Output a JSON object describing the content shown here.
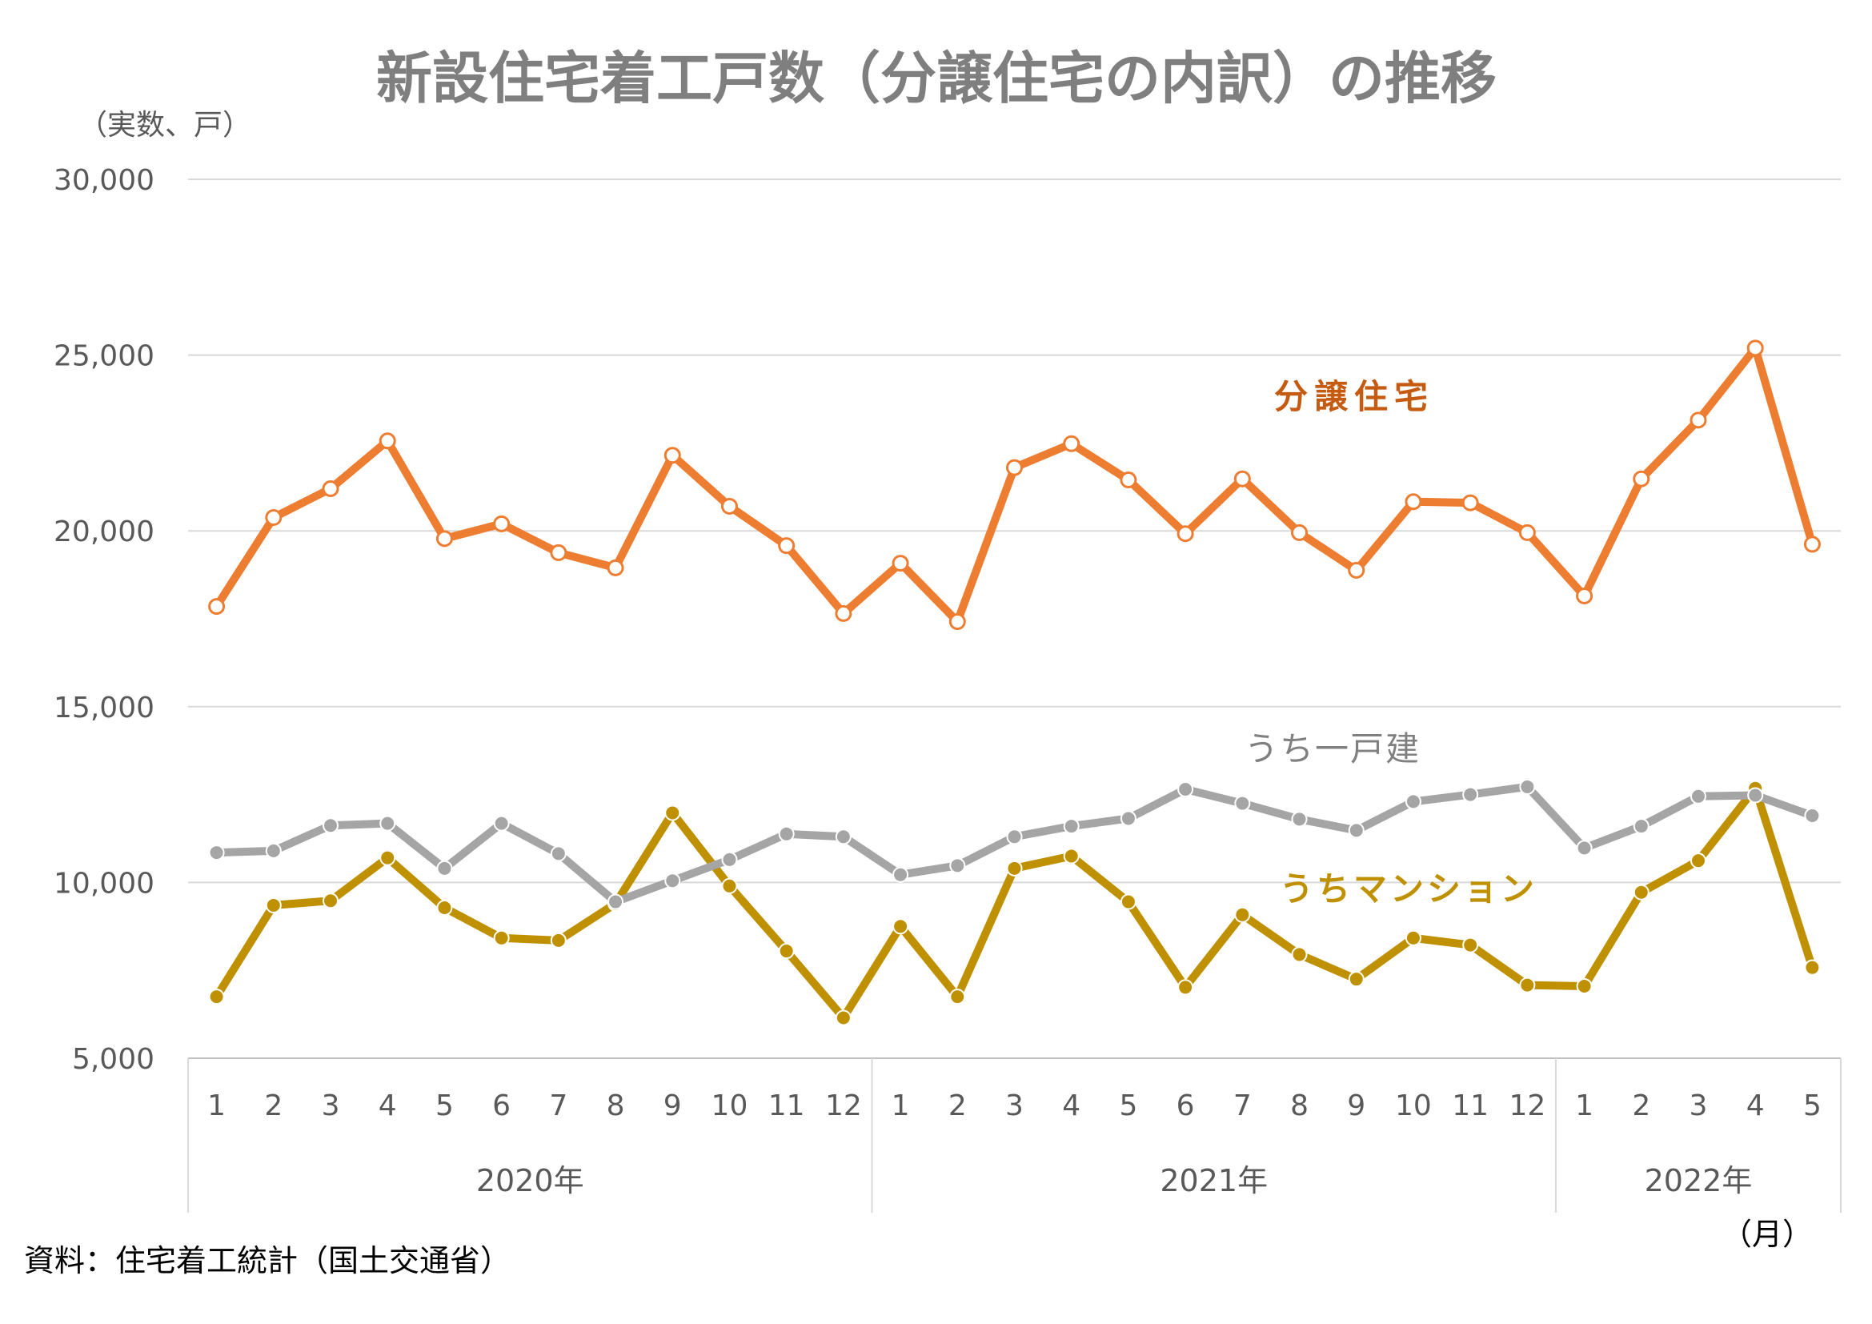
{
  "chart_data": {
    "type": "line",
    "title": "新設住宅着工戸数（分譲住宅の内訳）の推移",
    "ylabel": "（実数、戸）",
    "xlabel": "（月）",
    "source": "資料：住宅着工統計（国土交通省）",
    "ylim": [
      5000,
      30000
    ],
    "yticks": [
      5000,
      10000,
      15000,
      20000,
      25000,
      30000
    ],
    "ytick_labels": [
      "5,000",
      "10,000",
      "15,000",
      "20,000",
      "25,000",
      "30,000"
    ],
    "grid": true,
    "categories": [
      "1",
      "2",
      "3",
      "4",
      "5",
      "6",
      "7",
      "8",
      "9",
      "10",
      "11",
      "12",
      "1",
      "2",
      "3",
      "4",
      "5",
      "6",
      "7",
      "8",
      "9",
      "10",
      "11",
      "12",
      "1",
      "2",
      "3",
      "4",
      "5"
    ],
    "year_groups": [
      {
        "label": "2020年",
        "count": 12
      },
      {
        "label": "2021年",
        "count": 12
      },
      {
        "label": "2022年",
        "count": 5
      }
    ],
    "series": [
      {
        "name": "分譲住宅",
        "color": "#ed7d31",
        "marker": "hollow",
        "values": [
          17850,
          20380,
          21200,
          22560,
          19780,
          20200,
          19380,
          18950,
          22150,
          20700,
          19580,
          17650,
          19080,
          17420,
          21800,
          22480,
          21450,
          19920,
          21480,
          19950,
          18880,
          20830,
          20800,
          19950,
          18150,
          21480,
          23150,
          25200,
          19620
        ]
      },
      {
        "name": "うち一戸建",
        "color": "#a5a5a5",
        "marker": "filled",
        "values": [
          10850,
          10900,
          11620,
          11680,
          10400,
          11680,
          10820,
          9450,
          10050,
          10650,
          11380,
          11300,
          10220,
          10480,
          11300,
          11600,
          11820,
          12650,
          12250,
          11800,
          11480,
          12300,
          12500,
          12720,
          10980,
          11600,
          12450,
          12480,
          11900
        ]
      },
      {
        "name": "うちマンション",
        "color": "#bf9000",
        "marker": "filled",
        "values": [
          6750,
          9350,
          9480,
          10700,
          9280,
          8420,
          8350,
          9400,
          11980,
          9900,
          8050,
          6150,
          8750,
          6750,
          10400,
          10750,
          9450,
          7020,
          9080,
          7950,
          7250,
          8420,
          8220,
          7080,
          7050,
          9720,
          10620,
          12680,
          7580
        ]
      }
    ]
  }
}
